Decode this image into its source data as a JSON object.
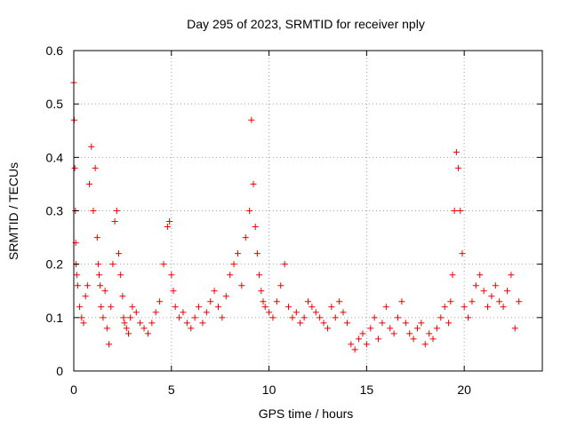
{
  "chart_data": {
    "type": "scatter",
    "title": "Day 295 of 2023, SRMTID for receiver nply",
    "xlabel": "GPS time / hours",
    "ylabel": "SRMTID / TECUs",
    "xlim": [
      0,
      24
    ],
    "ylim": [
      0,
      0.6
    ],
    "xticks": [
      0,
      5,
      10,
      15,
      20
    ],
    "xtick_labels": [
      "0",
      "5",
      "10",
      "15",
      "20"
    ],
    "yticks": [
      0,
      0.1,
      0.2,
      0.3,
      0.4,
      0.5,
      0.6
    ],
    "ytick_labels": [
      "0",
      "0.1",
      "0.2",
      "0.3",
      "0.4",
      "0.5",
      "0.6"
    ],
    "grid": true,
    "marker": "plus",
    "color": "#ee0000",
    "series": [
      {
        "name": "SRMTID",
        "x": [
          0.0,
          0.02,
          0.05,
          0.08,
          0.1,
          0.12,
          0.15,
          0.2,
          0.3,
          0.4,
          0.5,
          0.6,
          0.7,
          0.8,
          0.9,
          1.0,
          1.1,
          1.2,
          1.25,
          1.3,
          1.35,
          1.4,
          1.5,
          1.6,
          1.7,
          1.8,
          1.9,
          2.0,
          2.1,
          2.2,
          2.3,
          2.4,
          2.5,
          2.55,
          2.6,
          2.7,
          2.8,
          2.9,
          3.0,
          3.2,
          3.4,
          3.6,
          3.8,
          4.0,
          4.2,
          4.4,
          4.6,
          4.8,
          4.9,
          5.0,
          5.1,
          5.2,
          5.4,
          5.6,
          5.8,
          6.0,
          6.2,
          6.4,
          6.6,
          6.8,
          7.0,
          7.2,
          7.4,
          7.6,
          7.8,
          8.0,
          8.2,
          8.4,
          8.6,
          8.8,
          9.0,
          9.1,
          9.2,
          9.3,
          9.4,
          9.5,
          9.6,
          9.7,
          9.8,
          10.0,
          10.2,
          10.4,
          10.6,
          10.8,
          11.0,
          11.2,
          11.4,
          11.6,
          11.8,
          12.0,
          12.2,
          12.4,
          12.6,
          12.8,
          13.0,
          13.2,
          13.4,
          13.6,
          13.8,
          14.0,
          14.2,
          14.4,
          14.6,
          14.8,
          15.0,
          15.2,
          15.4,
          15.6,
          15.8,
          16.0,
          16.2,
          16.4,
          16.6,
          16.8,
          17.0,
          17.2,
          17.4,
          17.6,
          17.8,
          18.0,
          18.2,
          18.4,
          18.6,
          18.8,
          19.0,
          19.2,
          19.3,
          19.4,
          19.5,
          19.6,
          19.7,
          19.8,
          19.9,
          20.0,
          20.2,
          20.4,
          20.6,
          20.8,
          21.0,
          21.2,
          21.4,
          21.6,
          21.8,
          22.0,
          22.2,
          22.4,
          22.6,
          22.8
        ],
        "y": [
          0.54,
          0.47,
          0.38,
          0.3,
          0.24,
          0.2,
          0.18,
          0.16,
          0.12,
          0.1,
          0.09,
          0.14,
          0.16,
          0.35,
          0.42,
          0.3,
          0.38,
          0.25,
          0.2,
          0.18,
          0.16,
          0.12,
          0.1,
          0.15,
          0.08,
          0.05,
          0.12,
          0.2,
          0.28,
          0.3,
          0.22,
          0.18,
          0.14,
          0.1,
          0.09,
          0.08,
          0.07,
          0.1,
          0.12,
          0.11,
          0.09,
          0.08,
          0.07,
          0.09,
          0.11,
          0.13,
          0.2,
          0.27,
          0.28,
          0.18,
          0.15,
          0.12,
          0.1,
          0.11,
          0.09,
          0.08,
          0.1,
          0.12,
          0.09,
          0.11,
          0.13,
          0.15,
          0.12,
          0.1,
          0.14,
          0.18,
          0.2,
          0.22,
          0.16,
          0.25,
          0.3,
          0.47,
          0.35,
          0.27,
          0.22,
          0.18,
          0.15,
          0.13,
          0.12,
          0.11,
          0.1,
          0.13,
          0.16,
          0.2,
          0.12,
          0.1,
          0.11,
          0.09,
          0.1,
          0.13,
          0.12,
          0.11,
          0.1,
          0.09,
          0.08,
          0.12,
          0.1,
          0.13,
          0.11,
          0.09,
          0.05,
          0.04,
          0.06,
          0.07,
          0.05,
          0.08,
          0.1,
          0.06,
          0.09,
          0.12,
          0.08,
          0.07,
          0.1,
          0.13,
          0.09,
          0.07,
          0.06,
          0.08,
          0.09,
          0.05,
          0.07,
          0.06,
          0.08,
          0.1,
          0.12,
          0.09,
          0.13,
          0.18,
          0.3,
          0.41,
          0.38,
          0.3,
          0.22,
          0.12,
          0.1,
          0.13,
          0.16,
          0.18,
          0.15,
          0.12,
          0.14,
          0.16,
          0.13,
          0.12,
          0.15,
          0.18,
          0.08,
          0.13
        ]
      }
    ]
  }
}
